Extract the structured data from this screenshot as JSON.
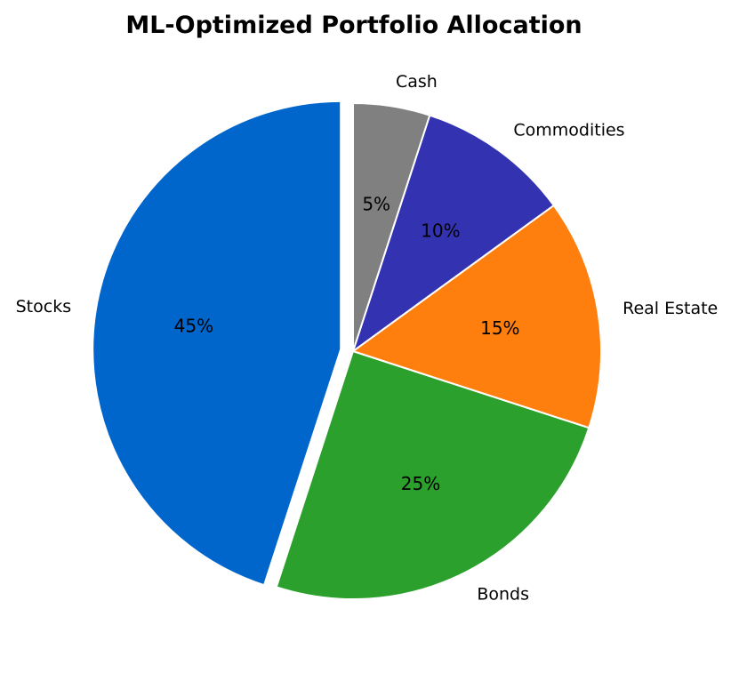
{
  "chart_data": {
    "type": "pie",
    "title": "ML-Optimized Portfolio Allocation",
    "categories": [
      "Stocks",
      "Bonds",
      "Real Estate",
      "Commodities",
      "Cash"
    ],
    "values": [
      45,
      25,
      15,
      10,
      5
    ],
    "pct_labels": [
      "45%",
      "25%",
      "15%",
      "10%",
      "5%"
    ],
    "colors": [
      "#0066cc",
      "#2ca02c",
      "#ff7f0e",
      "#3333b2",
      "#808080"
    ],
    "explode": [
      0.05,
      0,
      0,
      0,
      0
    ],
    "start_angle_deg": 90,
    "direction": "counterclockwise"
  }
}
